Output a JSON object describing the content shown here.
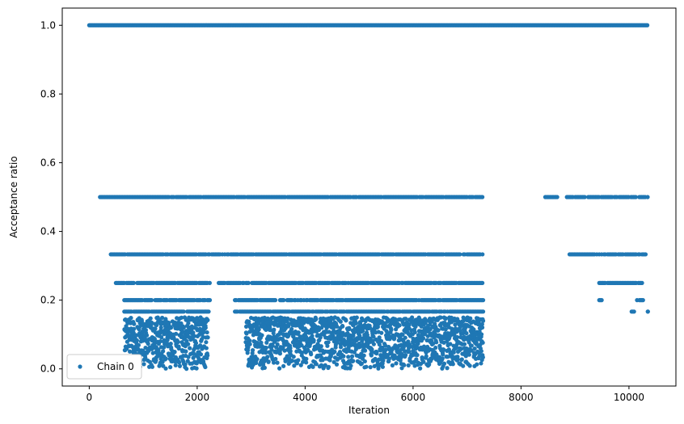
{
  "chart_data": {
    "type": "scatter",
    "xlabel": "Iteration",
    "ylabel": "Acceptance ratio",
    "xlim": [
      -500,
      10870
    ],
    "ylim": [
      -0.05,
      1.05
    ],
    "x_ticks": [
      0,
      2000,
      4000,
      6000,
      8000,
      10000
    ],
    "y_ticks": [
      0.0,
      0.2,
      0.4,
      0.6,
      0.8,
      1.0
    ],
    "x_tick_labels": [
      "0",
      "2000",
      "4000",
      "6000",
      "8000",
      "10000"
    ],
    "y_tick_labels": [
      "0.0",
      "0.2",
      "0.4",
      "0.6",
      "0.8",
      "1.0"
    ],
    "grid": false,
    "legend_position": "lower-left",
    "series": [
      {
        "name": "Chain 0",
        "color": "#1f77b4",
        "marker": "circle",
        "x_range": [
          0,
          10350
        ],
        "levels": [
          {
            "y": 1.0,
            "segments": [
              [
                0,
                10350
              ]
            ]
          },
          {
            "y": 0.5,
            "segments": [
              [
                200,
                7300
              ],
              [
                8450,
                8700
              ],
              [
                8850,
                10350
              ]
            ]
          },
          {
            "y": 0.3333,
            "segments": [
              [
                400,
                7300
              ],
              [
                8900,
                10350
              ]
            ]
          },
          {
            "y": 0.25,
            "segments": [
              [
                450,
                2250
              ],
              [
                2400,
                7300
              ],
              [
                9450,
                10250
              ]
            ]
          },
          {
            "y": 0.2,
            "segments": [
              [
                650,
                2250
              ],
              [
                2700,
                7300
              ],
              [
                9450,
                9500
              ],
              [
                10150,
                10300
              ]
            ]
          },
          {
            "y": 0.1667,
            "segments": [
              [
                650,
                2250
              ],
              [
                2700,
                7300
              ],
              [
                10050,
                10100
              ],
              [
                10350,
                10350
              ]
            ]
          }
        ],
        "scatter_region": [
          [
            650,
            2200
          ],
          [
            2900,
            7300
          ]
        ],
        "scatter_y_range": [
          0.0,
          0.15
        ]
      }
    ]
  }
}
